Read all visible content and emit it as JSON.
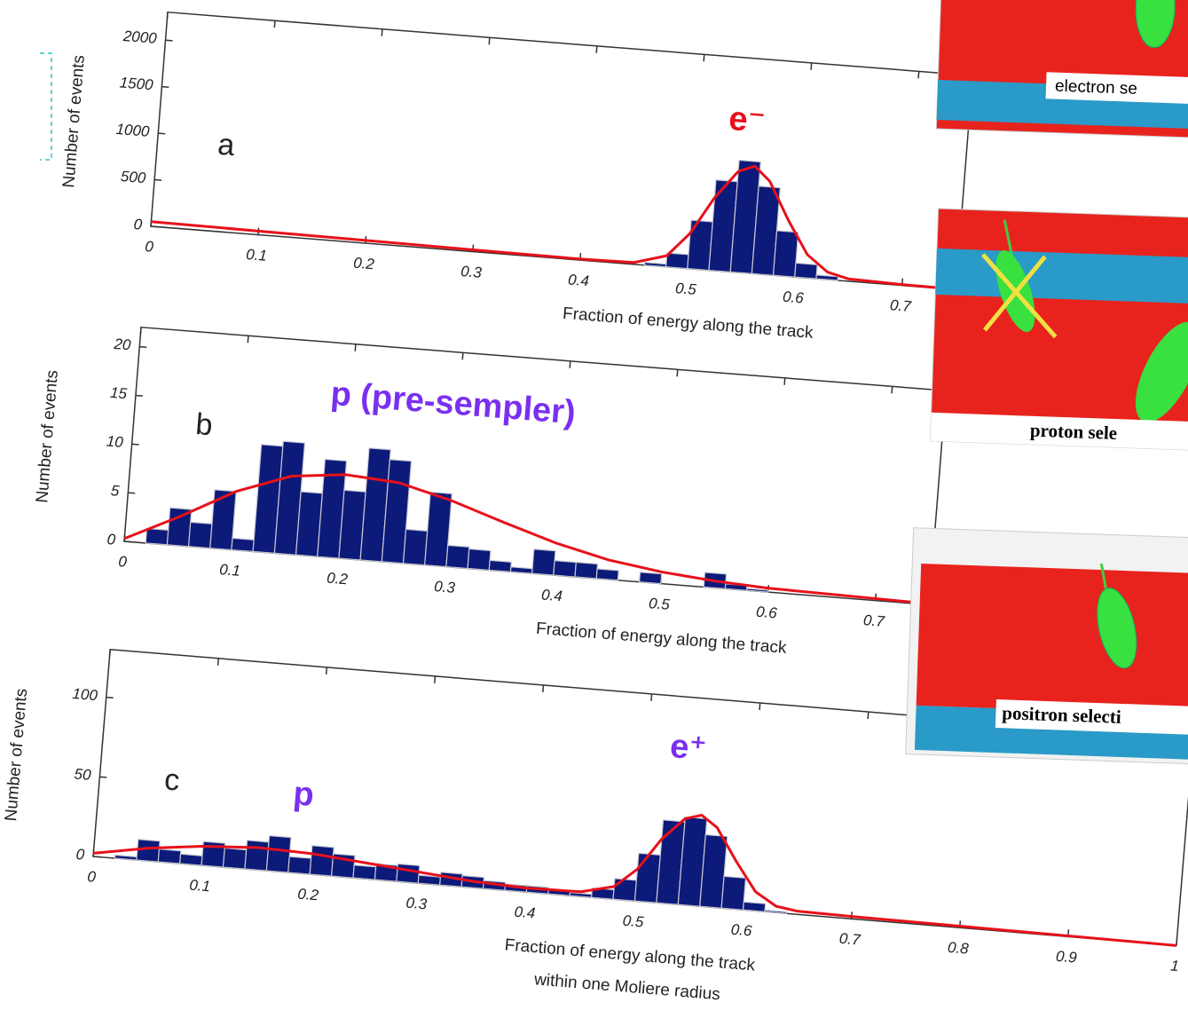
{
  "chart_data": [
    {
      "type": "histogram",
      "panel_label": "a",
      "annotations": [
        "e⁻"
      ],
      "annotation_color": "#e8101a",
      "ylabel": "Number of events",
      "xlabel": [
        "Fraction of energy along the track"
      ],
      "bins": [
        0.46,
        0.48,
        0.5,
        0.52,
        0.54,
        0.56,
        0.58,
        0.6,
        0.62,
        0.64
      ],
      "counts": [
        30,
        150,
        520,
        970,
        1200,
        940,
        480,
        150,
        40
      ],
      "color": "#0c1a7a",
      "fit": {
        "color": "#e8101a",
        "x": [
          0,
          0.1,
          0.2,
          0.3,
          0.4,
          0.45,
          0.48,
          0.5,
          0.52,
          0.54,
          0.555,
          0.57,
          0.59,
          0.61,
          0.63,
          0.65,
          0.7,
          0.75
        ],
        "values": [
          50,
          40,
          30,
          20,
          12,
          20,
          120,
          380,
          780,
          1080,
          1150,
          1000,
          600,
          250,
          80,
          25,
          10,
          5
        ]
      },
      "xlim": [
        0,
        0.75
      ],
      "ylim": [
        0,
        2300
      ],
      "xticks": [
        0,
        0.1,
        0.2,
        0.3,
        0.4,
        0.5,
        0.6,
        0.7
      ],
      "yticks": [
        0,
        500,
        1000,
        1500,
        2000
      ]
    },
    {
      "type": "histogram",
      "panel_label": "b",
      "annotations": [
        "p  (pre-sempler)"
      ],
      "annotation_color": "#7a2ff0",
      "ylabel": "Number of events",
      "xlabel": [
        "Fraction of energy along the track"
      ],
      "bins": [
        0.02,
        0.04,
        0.06,
        0.08,
        0.1,
        0.12,
        0.14,
        0.16,
        0.18,
        0.2,
        0.22,
        0.24,
        0.26,
        0.28,
        0.3,
        0.32,
        0.34,
        0.36,
        0.38,
        0.4,
        0.42,
        0.44,
        0.46,
        0.48,
        0.5,
        0.52,
        0.54,
        0.56,
        0.58,
        0.6
      ],
      "counts": [
        1.5,
        3.8,
        2.5,
        6,
        1.2,
        11,
        11.5,
        6.5,
        10,
        7,
        11.5,
        10.5,
        3.5,
        7.5,
        2.2,
        2,
        1,
        0.5,
        2.5,
        1.5,
        1.5,
        1,
        0,
        1,
        0,
        0,
        1.5,
        0.5,
        0.2
      ],
      "color": "#0c1a7a",
      "fit": {
        "color": "#e8101a",
        "x": [
          0,
          0.05,
          0.1,
          0.15,
          0.2,
          0.25,
          0.3,
          0.35,
          0.4,
          0.45,
          0.5,
          0.55,
          0.6,
          0.65,
          0.7,
          0.75
        ],
        "values": [
          0.3,
          3,
          6,
          8,
          8.6,
          8.2,
          6.8,
          5,
          3.3,
          2,
          1.2,
          0.7,
          0.4,
          0.3,
          0.2,
          0.1
        ]
      },
      "xlim": [
        0,
        0.75
      ],
      "ylim": [
        0,
        22
      ],
      "xticks": [
        0,
        0.1,
        0.2,
        0.3,
        0.4,
        0.5,
        0.6,
        0.7
      ],
      "yticks": [
        0,
        5,
        10,
        15,
        20
      ]
    },
    {
      "type": "histogram",
      "panel_label": "c",
      "annotations": [
        "p",
        "e⁺"
      ],
      "annotation_color": "#7a2ff0",
      "ylabel": "Number of events",
      "xlabel": [
        "Fraction of energy along the track",
        "within one Moliere radius"
      ],
      "bins": [
        0.02,
        0.04,
        0.06,
        0.08,
        0.1,
        0.12,
        0.14,
        0.16,
        0.18,
        0.2,
        0.22,
        0.24,
        0.26,
        0.28,
        0.3,
        0.32,
        0.34,
        0.36,
        0.38,
        0.4,
        0.42,
        0.44,
        0.46,
        0.48,
        0.5,
        0.52,
        0.54,
        0.56,
        0.58,
        0.6,
        0.62,
        0.64
      ],
      "counts": [
        2,
        13,
        8,
        6,
        15,
        12,
        18,
        22,
        10,
        18,
        14,
        8,
        10,
        11,
        5,
        8,
        7,
        5,
        4,
        4,
        3,
        2,
        6,
        13,
        30,
        52,
        55,
        45,
        20,
        5,
        1
      ],
      "color": "#0c1a7a",
      "fit": {
        "color": "#e8101a",
        "x": [
          0,
          0.05,
          0.1,
          0.15,
          0.2,
          0.25,
          0.3,
          0.35,
          0.4,
          0.45,
          0.48,
          0.5,
          0.52,
          0.54,
          0.555,
          0.57,
          0.59,
          0.61,
          0.63,
          0.65,
          0.7,
          0.8,
          0.9,
          1
        ],
        "values": [
          2,
          8,
          12,
          14,
          13,
          10,
          7,
          4,
          2.5,
          3,
          8,
          20,
          40,
          54,
          57,
          50,
          30,
          12,
          4,
          2,
          1.5,
          1,
          0.5,
          0
        ]
      },
      "xlim": [
        0,
        1
      ],
      "ylim": [
        0,
        130
      ],
      "xticks": [
        0,
        0.1,
        0.2,
        0.3,
        0.4,
        0.5,
        0.6,
        0.7,
        0.8,
        0.9,
        1
      ],
      "yticks": [
        0,
        50,
        100
      ]
    }
  ],
  "images": [
    {
      "caption": "electron  se"
    },
    {
      "caption": "proton  sele"
    },
    {
      "caption": "positron selecti"
    }
  ]
}
